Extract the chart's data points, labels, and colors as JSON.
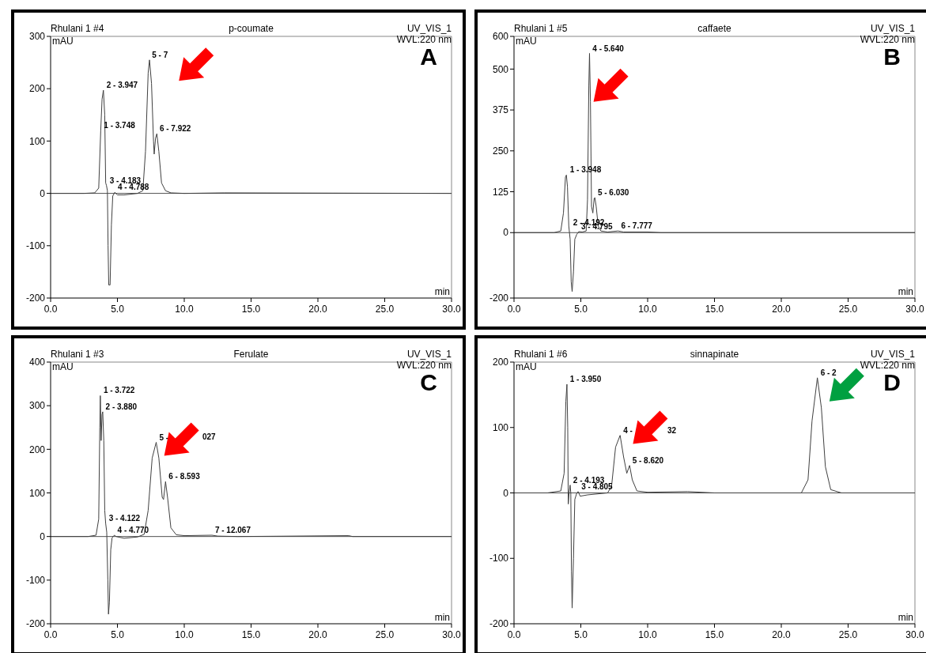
{
  "chart_data": [
    {
      "type": "line",
      "title": "p-coumate",
      "xlabel": "min",
      "ylabel": "mAU",
      "xlim": [
        0,
        30
      ],
      "ylim": [
        -200,
        300
      ],
      "xticks": [
        {
          "value": 0,
          "label": "0.0"
        },
        {
          "value": 5,
          "label": "5.0"
        },
        {
          "value": 10,
          "label": "10.0"
        },
        {
          "value": 15,
          "label": "15.0"
        },
        {
          "value": 20,
          "label": "20.0"
        },
        {
          "value": 25,
          "label": "25.0"
        },
        {
          "value": 30,
          "label": "30.0"
        }
      ],
      "yticks": [
        -200,
        -100,
        0,
        100,
        200,
        300
      ],
      "series": [
        {
          "color": "#404040",
          "x": [
            0,
            2.5,
            3.3,
            3.6,
            3.75,
            3.85,
            3.95,
            4.05,
            4.12,
            4.18,
            4.25,
            4.3,
            4.35,
            4.45,
            4.55,
            4.65,
            4.8,
            5.0,
            5.5,
            6.5,
            6.9,
            7.1,
            7.3,
            7.4,
            7.55,
            7.7,
            7.75,
            7.85,
            7.95,
            8.1,
            8.3,
            8.6,
            9,
            10,
            13,
            30
          ],
          "values": [
            0,
            0,
            1,
            10,
            120,
            180,
            197,
            150,
            20,
            15,
            5,
            -100,
            -175,
            -175,
            -60,
            -5,
            2,
            -3,
            -3,
            0,
            5,
            80,
            230,
            255,
            210,
            100,
            75,
            105,
            114,
            80,
            20,
            5,
            1,
            0,
            1,
            0
          ]
        }
      ],
      "annotations": [
        "Rhulani 1 #4",
        "UV_VIS_1",
        "WVL:220 nm",
        "A",
        {
          "text": "1 - 3.748",
          "x": 3.748,
          "y": 120
        },
        {
          "text": "2 - 3.947",
          "x": 3.947,
          "y": 197
        },
        {
          "text": "3 - 4.183",
          "x": 4.183,
          "y": 15
        },
        {
          "text": "4 - 4.788",
          "x": 4.788,
          "y": 2
        },
        {
          "text": "5 - 7",
          "x": 7.35,
          "y": 255
        },
        {
          "text": "6 - 7.922",
          "x": 7.922,
          "y": 114
        }
      ]
    },
    {
      "type": "line",
      "title": "caffaete",
      "xlabel": "min",
      "ylabel": "mAU",
      "xlim": [
        0,
        30
      ],
      "ylim": [
        -200,
        600
      ],
      "xticks": [
        {
          "value": 0,
          "label": "0.0"
        },
        {
          "value": 5,
          "label": "5.0"
        },
        {
          "value": 10,
          "label": "10.0"
        },
        {
          "value": 15,
          "label": "15.0"
        },
        {
          "value": 20,
          "label": "20.0"
        },
        {
          "value": 25,
          "label": "25.0"
        },
        {
          "value": 30,
          "label": "30.0"
        }
      ],
      "yticks": [
        -200,
        0,
        125,
        250,
        375,
        500,
        600
      ],
      "series": [
        {
          "color": "#404040",
          "x": [
            0,
            3.0,
            3.5,
            3.7,
            3.85,
            3.92,
            4.0,
            4.1,
            4.15,
            4.2,
            4.28,
            4.35,
            4.45,
            4.55,
            4.7,
            4.85,
            5.1,
            5.4,
            5.5,
            5.6,
            5.65,
            5.72,
            5.8,
            5.9,
            6.0,
            6.05,
            6.15,
            6.3,
            6.5,
            7,
            7.78,
            8.2,
            10,
            11,
            30
          ],
          "values": [
            0,
            0,
            5,
            60,
            170,
            176,
            140,
            20,
            0,
            -20,
            -150,
            -180,
            -120,
            -20,
            -5,
            3,
            2,
            5,
            100,
            450,
            548,
            400,
            80,
            60,
            105,
            107,
            80,
            20,
            5,
            2,
            5,
            2,
            2,
            0,
            0
          ]
        }
      ],
      "annotations": [
        "Rhulani 1 #5",
        "UV_VIS_1",
        "WVL:220 nm",
        "B",
        {
          "text": "1 - 3.948",
          "x": 3.948,
          "y": 176
        },
        {
          "text": "2 - 4.192",
          "x": 4.192,
          "y": 15
        },
        {
          "text": "3 - 4.795",
          "x": 4.795,
          "y": 3
        },
        {
          "text": "4 - 5.640",
          "x": 5.64,
          "y": 548
        },
        {
          "text": "5 - 6.030",
          "x": 6.03,
          "y": 107
        },
        {
          "text": "6 - 7.777",
          "x": 7.777,
          "y": 5
        }
      ]
    },
    {
      "type": "line",
      "title": "Ferulate",
      "xlabel": "min",
      "ylabel": "mAU",
      "xlim": [
        0,
        30
      ],
      "ylim": [
        -200,
        400
      ],
      "xticks": [
        {
          "value": 0,
          "label": "0.0"
        },
        {
          "value": 5,
          "label": "5.0"
        },
        {
          "value": 10,
          "label": "10.0"
        },
        {
          "value": 15,
          "label": "15.0"
        },
        {
          "value": 20,
          "label": "20.0"
        },
        {
          "value": 25,
          "label": "25.0"
        },
        {
          "value": 30,
          "label": "30.0"
        }
      ],
      "yticks": [
        -200,
        -100,
        0,
        100,
        200,
        300,
        400
      ],
      "series": [
        {
          "color": "#404040",
          "x": [
            0,
            2.8,
            3.4,
            3.6,
            3.68,
            3.72,
            3.78,
            3.85,
            3.9,
            3.98,
            4.05,
            4.12,
            4.2,
            4.28,
            4.33,
            4.4,
            4.5,
            4.6,
            4.77,
            4.9,
            5.5,
            6.5,
            7,
            7.3,
            7.6,
            7.9,
            8.1,
            8.35,
            8.45,
            8.6,
            8.75,
            9,
            9.4,
            10,
            12.07,
            12.5,
            14,
            22.3,
            22.6,
            30
          ],
          "values": [
            0,
            0,
            3,
            40,
            250,
            323,
            220,
            280,
            286,
            220,
            60,
            30,
            10,
            -100,
            -178,
            -150,
            -30,
            -3,
            3,
            0,
            -4,
            -1,
            5,
            60,
            180,
            216,
            180,
            90,
            85,
            126,
            90,
            20,
            4,
            2,
            3,
            1,
            0,
            2,
            0,
            0
          ]
        }
      ],
      "annotations": [
        "Rhulani 1 #3",
        "UV_VIS_1",
        "WVL:220 nm",
        "C",
        {
          "text": "1 - 3.722",
          "x": 3.722,
          "y": 323
        },
        {
          "text": "2 - 3.880",
          "x": 3.88,
          "y": 286
        },
        {
          "text": "3 - 4.122",
          "x": 4.122,
          "y": 30
        },
        {
          "text": "4 - 4.770",
          "x": 4.77,
          "y": 3
        },
        {
          "text": "5 -",
          "x": 7.9,
          "y": 216
        },
        {
          "text": "6 - 8.593",
          "x": 8.593,
          "y": 126
        },
        {
          "text": "7 - 12.067",
          "x": 12.067,
          "y": 3
        },
        "027"
      ]
    },
    {
      "type": "line",
      "title": "sinnapinate",
      "xlabel": "min",
      "ylabel": "mAU",
      "xlim": [
        0,
        30
      ],
      "ylim": [
        -200,
        200
      ],
      "xticks": [
        {
          "value": 0,
          "label": "0.0"
        },
        {
          "value": 5,
          "label": "5.0"
        },
        {
          "value": 10,
          "label": "10.0"
        },
        {
          "value": 15,
          "label": "15.0"
        },
        {
          "value": 20,
          "label": "20.0"
        },
        {
          "value": 25,
          "label": "25.0"
        },
        {
          "value": 30,
          "label": "30.0"
        }
      ],
      "yticks": [
        -200,
        -100,
        0,
        100,
        200
      ],
      "series": [
        {
          "color": "#404040",
          "x": [
            0,
            2.5,
            3.5,
            3.75,
            3.88,
            3.96,
            4.02,
            4.06,
            4.12,
            4.2,
            4.25,
            4.3,
            4.35,
            4.45,
            4.55,
            4.7,
            4.8,
            4.95,
            5.5,
            7.0,
            7.3,
            7.6,
            7.94,
            8.2,
            8.44,
            8.65,
            8.85,
            9.2,
            10,
            13,
            15,
            21.5,
            22.0,
            22.3,
            22.7,
            23.0,
            23.3,
            23.7,
            24.5,
            30
          ],
          "values": [
            0,
            0,
            3,
            30,
            140,
            166,
            100,
            -17,
            0,
            12,
            0,
            -120,
            -176,
            -100,
            -10,
            0,
            2,
            -5,
            -3,
            0,
            10,
            70,
            88,
            55,
            30,
            42,
            20,
            3,
            1,
            2,
            0,
            0,
            20,
            110,
            176,
            130,
            40,
            5,
            0,
            0
          ]
        }
      ],
      "annotations": [
        "Rhulani 1 #6",
        "UV_VIS_1",
        "WVL:220 nm",
        "D",
        {
          "text": "1 - 3.950",
          "x": 3.95,
          "y": 166
        },
        {
          "text": "2 - 4.193",
          "x": 4.193,
          "y": 12
        },
        {
          "text": "3 - 4.805",
          "x": 4.805,
          "y": 2
        },
        {
          "text": "4 -",
          "x": 7.94,
          "y": 88
        },
        {
          "text": "5 - 8.620",
          "x": 8.62,
          "y": 42
        },
        {
          "text": "6 - 2",
          "x": 22.7,
          "y": 176
        },
        "32"
      ]
    }
  ]
}
